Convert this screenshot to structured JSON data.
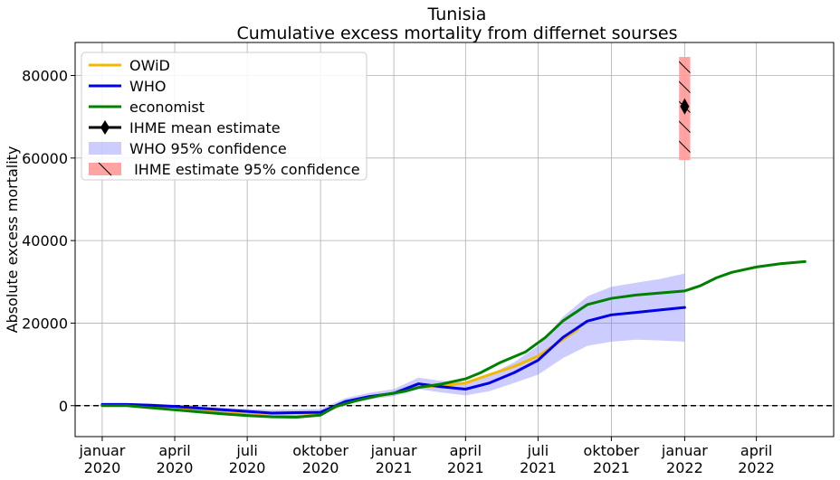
{
  "chart_data": {
    "type": "line",
    "title": "Tunisia",
    "subtitle": "Cumulative excess mortality from differnet sourses",
    "xlabel": "",
    "ylabel": "Absolute excess mortality",
    "x_axis": "date",
    "xlim": [
      "2019-11-28",
      "2022-07-07"
    ],
    "ylim": [
      -7500,
      88000
    ],
    "grid": true,
    "legend_position": "top-left",
    "reference_line": {
      "y": 0,
      "style": "dashed",
      "color": "#000000"
    },
    "x_ticks": [
      {
        "date": "2020-01-01",
        "line1": "januar",
        "line2": "2020"
      },
      {
        "date": "2020-04-01",
        "line1": "april",
        "line2": "2020"
      },
      {
        "date": "2020-07-01",
        "line1": "juli",
        "line2": "2020"
      },
      {
        "date": "2020-10-01",
        "line1": "oktober",
        "line2": "2020"
      },
      {
        "date": "2021-01-01",
        "line1": "januar",
        "line2": "2021"
      },
      {
        "date": "2021-04-01",
        "line1": "april",
        "line2": "2021"
      },
      {
        "date": "2021-07-01",
        "line1": "juli",
        "line2": "2021"
      },
      {
        "date": "2021-10-01",
        "line1": "oktober",
        "line2": "2021"
      },
      {
        "date": "2022-01-01",
        "line1": "januar",
        "line2": "2022"
      },
      {
        "date": "2022-04-01",
        "line1": "april",
        "line2": "2022"
      }
    ],
    "y_ticks": [
      0,
      20000,
      40000,
      60000,
      80000
    ],
    "series": [
      {
        "name": "OWiD",
        "kind": "line",
        "color": "#f5b800",
        "points": [
          [
            "2020-01-01",
            0
          ],
          [
            "2020-02-01",
            100
          ],
          [
            "2020-03-01",
            -300
          ],
          [
            "2020-04-01",
            -700
          ],
          [
            "2020-05-01",
            -1200
          ],
          [
            "2020-06-01",
            -1700
          ],
          [
            "2020-07-01",
            -2100
          ],
          [
            "2020-08-01",
            -2600
          ],
          [
            "2020-09-01",
            -2600
          ],
          [
            "2020-09-25",
            -2300
          ],
          [
            "2020-10-15",
            -800
          ],
          [
            "2020-11-01",
            700
          ],
          [
            "2020-12-01",
            2000
          ],
          [
            "2021-01-01",
            3000
          ],
          [
            "2021-02-01",
            4500
          ],
          [
            "2021-03-01",
            4800
          ],
          [
            "2021-04-01",
            5500
          ],
          [
            "2021-05-01",
            7500
          ],
          [
            "2021-06-01",
            9500
          ],
          [
            "2021-07-01",
            12000
          ],
          [
            "2021-08-01",
            16000
          ],
          [
            "2021-08-20",
            18500
          ]
        ]
      },
      {
        "name": "WHO",
        "kind": "line",
        "color": "#0000e6",
        "points": [
          [
            "2020-01-01",
            300
          ],
          [
            "2020-02-01",
            300
          ],
          [
            "2020-03-01",
            100
          ],
          [
            "2020-04-01",
            -200
          ],
          [
            "2020-05-01",
            -600
          ],
          [
            "2020-06-01",
            -1000
          ],
          [
            "2020-07-01",
            -1400
          ],
          [
            "2020-08-01",
            -1800
          ],
          [
            "2020-09-01",
            -1700
          ],
          [
            "2020-10-01",
            -1600
          ],
          [
            "2020-11-01",
            1000
          ],
          [
            "2020-12-01",
            2200
          ],
          [
            "2021-01-01",
            3000
          ],
          [
            "2021-02-01",
            5300
          ],
          [
            "2021-03-01",
            4600
          ],
          [
            "2021-04-01",
            4000
          ],
          [
            "2021-05-01",
            5500
          ],
          [
            "2021-06-01",
            8000
          ],
          [
            "2021-07-01",
            11000
          ],
          [
            "2021-08-01",
            16500
          ],
          [
            "2021-09-01",
            20500
          ],
          [
            "2021-10-01",
            22000
          ],
          [
            "2021-11-01",
            22600
          ],
          [
            "2021-12-01",
            23200
          ],
          [
            "2022-01-01",
            23800
          ]
        ]
      },
      {
        "name": "economist",
        "kind": "line",
        "color": "#008000",
        "points": [
          [
            "2020-01-01",
            0
          ],
          [
            "2020-02-01",
            0
          ],
          [
            "2020-03-01",
            -500
          ],
          [
            "2020-04-01",
            -1000
          ],
          [
            "2020-05-01",
            -1500
          ],
          [
            "2020-06-01",
            -2000
          ],
          [
            "2020-07-01",
            -2400
          ],
          [
            "2020-08-01",
            -2700
          ],
          [
            "2020-09-01",
            -2800
          ],
          [
            "2020-10-01",
            -2300
          ],
          [
            "2020-10-20",
            -200
          ],
          [
            "2020-11-15",
            1200
          ],
          [
            "2020-12-15",
            2500
          ],
          [
            "2021-01-15",
            3500
          ],
          [
            "2021-02-01",
            4400
          ],
          [
            "2021-03-01",
            5200
          ],
          [
            "2021-04-01",
            6500
          ],
          [
            "2021-04-20",
            8000
          ],
          [
            "2021-05-15",
            10500
          ],
          [
            "2021-06-15",
            13000
          ],
          [
            "2021-07-10",
            16500
          ],
          [
            "2021-08-01",
            20500
          ],
          [
            "2021-09-01",
            24500
          ],
          [
            "2021-10-01",
            26000
          ],
          [
            "2021-11-01",
            26800
          ],
          [
            "2021-12-01",
            27300
          ],
          [
            "2022-01-01",
            27800
          ],
          [
            "2022-01-20",
            29000
          ],
          [
            "2022-02-10",
            31000
          ],
          [
            "2022-03-01",
            32300
          ],
          [
            "2022-04-01",
            33600
          ],
          [
            "2022-05-01",
            34400
          ],
          [
            "2022-06-01",
            34900
          ]
        ]
      },
      {
        "name": "IHME mean estimate",
        "kind": "point",
        "color": "#000000",
        "points": [
          [
            "2022-01-01",
            72500
          ]
        ]
      },
      {
        "name": "WHO 95% confidence",
        "kind": "band",
        "color": "#8080ff",
        "lower": [
          [
            "2020-01-01",
            0
          ],
          [
            "2020-02-01",
            0
          ],
          [
            "2020-03-01",
            -300
          ],
          [
            "2020-04-01",
            -600
          ],
          [
            "2020-05-01",
            -1000
          ],
          [
            "2020-06-01",
            -1500
          ],
          [
            "2020-07-01",
            -2000
          ],
          [
            "2020-08-01",
            -2500
          ],
          [
            "2020-09-01",
            -2500
          ],
          [
            "2020-10-01",
            -2500
          ],
          [
            "2020-11-01",
            300
          ],
          [
            "2020-12-01",
            1500
          ],
          [
            "2021-01-01",
            2300
          ],
          [
            "2021-02-01",
            4000
          ],
          [
            "2021-03-01",
            3200
          ],
          [
            "2021-04-01",
            2500
          ],
          [
            "2021-05-01",
            3500
          ],
          [
            "2021-06-01",
            5500
          ],
          [
            "2021-07-01",
            7500
          ],
          [
            "2021-08-01",
            11500
          ],
          [
            "2021-09-01",
            14500
          ],
          [
            "2021-10-01",
            15500
          ],
          [
            "2021-11-01",
            16000
          ],
          [
            "2021-12-01",
            15800
          ],
          [
            "2022-01-01",
            15500
          ]
        ],
        "upper": [
          [
            "2020-01-01",
            500
          ],
          [
            "2020-02-01",
            600
          ],
          [
            "2020-03-01",
            500
          ],
          [
            "2020-04-01",
            200
          ],
          [
            "2020-05-01",
            -200
          ],
          [
            "2020-06-01",
            -500
          ],
          [
            "2020-07-01",
            -800
          ],
          [
            "2020-08-01",
            -1000
          ],
          [
            "2020-09-01",
            -900
          ],
          [
            "2020-10-01",
            -800
          ],
          [
            "2020-11-01",
            1800
          ],
          [
            "2020-12-01",
            3100
          ],
          [
            "2021-01-01",
            4000
          ],
          [
            "2021-02-01",
            6800
          ],
          [
            "2021-03-01",
            6000
          ],
          [
            "2021-04-01",
            5700
          ],
          [
            "2021-05-01",
            7500
          ],
          [
            "2021-06-01",
            10500
          ],
          [
            "2021-07-01",
            14500
          ],
          [
            "2021-08-01",
            21500
          ],
          [
            "2021-09-01",
            26500
          ],
          [
            "2021-10-01",
            28800
          ],
          [
            "2021-11-01",
            29800
          ],
          [
            "2021-12-01",
            30700
          ],
          [
            "2022-01-01",
            32000
          ]
        ]
      },
      {
        "name": " IHME estimate 95% confidence",
        "kind": "interval",
        "color": "#ff9999",
        "x": "2022-01-01",
        "half_width_days": 7,
        "lower": 59500,
        "upper": 84500
      }
    ]
  }
}
